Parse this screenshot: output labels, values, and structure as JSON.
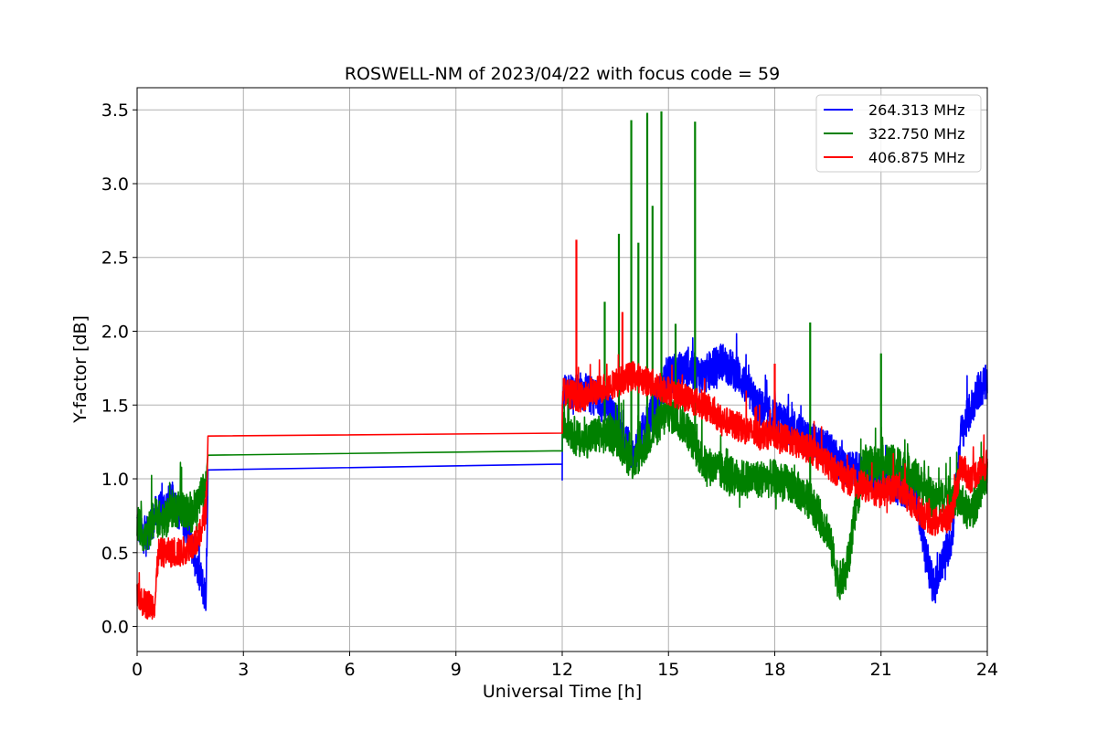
{
  "chart_data": {
    "type": "line",
    "title": "ROSWELL-NM of 2023/04/22 with focus code = 59",
    "xlabel": "Universal Time [h]",
    "ylabel": "Y-factor [dB]",
    "xlim": [
      0,
      24
    ],
    "ylim": [
      -0.17,
      3.65
    ],
    "xticks": [
      "0",
      "3",
      "6",
      "9",
      "12",
      "15",
      "18",
      "21",
      "24"
    ],
    "yticks": [
      "0.0",
      "0.5",
      "1.0",
      "1.5",
      "2.0",
      "2.5",
      "3.0",
      "3.5"
    ],
    "grid": true,
    "legend_position": "top-right",
    "series": [
      {
        "name": "264.313 MHz",
        "color": "#0000ff",
        "x": [
          0,
          0.25,
          0.5,
          0.75,
          1.0,
          1.25,
          1.5,
          1.75,
          1.95,
          2.0,
          12.0,
          12.0,
          12.5,
          13.0,
          13.5,
          14.0,
          14.5,
          15.0,
          15.5,
          16.0,
          16.5,
          17.0,
          17.5,
          18.0,
          18.5,
          19.0,
          19.5,
          20.0,
          20.5,
          21.0,
          21.5,
          22.0,
          22.25,
          22.5,
          22.75,
          23.0,
          23.25,
          23.5,
          23.75,
          24.0
        ],
        "y": [
          0.7,
          0.6,
          0.75,
          0.8,
          0.85,
          0.75,
          0.6,
          0.35,
          0.2,
          1.06,
          1.1,
          1.6,
          1.6,
          1.55,
          1.4,
          1.15,
          1.45,
          1.7,
          1.75,
          1.7,
          1.8,
          1.7,
          1.5,
          1.4,
          1.35,
          1.25,
          1.2,
          1.05,
          1.05,
          1.0,
          0.95,
          0.9,
          0.5,
          0.25,
          0.45,
          0.6,
          1.3,
          1.45,
          1.6,
          1.65
        ],
        "noise": 0.13
      },
      {
        "name": "322.750 MHz",
        "color": "#008000",
        "x": [
          0,
          0.25,
          0.5,
          0.75,
          1.0,
          1.25,
          1.5,
          1.75,
          1.95,
          2.0,
          12.0,
          12.0,
          12.5,
          13.0,
          13.5,
          14.0,
          14.5,
          15.0,
          15.5,
          16.0,
          16.5,
          17.0,
          17.5,
          18.0,
          18.5,
          19.0,
          19.5,
          19.8,
          20.0,
          20.5,
          21.0,
          21.5,
          22.0,
          22.5,
          23.0,
          23.25,
          23.5,
          24.0
        ],
        "y": [
          0.7,
          0.6,
          0.75,
          0.7,
          0.8,
          0.8,
          0.75,
          0.85,
          0.95,
          1.16,
          1.19,
          1.4,
          1.25,
          1.3,
          1.3,
          1.1,
          1.3,
          1.45,
          1.35,
          1.1,
          1.05,
          1.0,
          1.0,
          1.0,
          0.95,
          0.85,
          0.65,
          0.3,
          0.35,
          1.1,
          1.1,
          1.1,
          1.0,
          0.85,
          0.9,
          0.85,
          0.75,
          1.0
        ],
        "noise": 0.13,
        "spikes": [
          [
            13.2,
            2.2
          ],
          [
            13.6,
            2.66
          ],
          [
            13.95,
            3.43
          ],
          [
            14.15,
            2.6
          ],
          [
            14.4,
            3.48
          ],
          [
            14.55,
            2.85
          ],
          [
            14.8,
            3.49
          ],
          [
            15.2,
            2.05
          ],
          [
            15.75,
            3.42
          ],
          [
            19.0,
            2.06
          ],
          [
            21.0,
            1.85
          ]
        ]
      },
      {
        "name": "406.875 MHz",
        "color": "#ff0000",
        "x": [
          0,
          0.25,
          0.5,
          0.6,
          0.75,
          1.0,
          1.25,
          1.5,
          1.75,
          1.95,
          2.0,
          12.0,
          12.0,
          12.5,
          13.0,
          13.5,
          14.0,
          14.5,
          15.0,
          15.5,
          16.0,
          16.5,
          17.0,
          17.5,
          18.0,
          18.5,
          19.0,
          19.5,
          20.0,
          20.5,
          21.0,
          21.5,
          22.0,
          22.5,
          23.0,
          23.25,
          23.5,
          24.0
        ],
        "y": [
          0.2,
          0.15,
          0.15,
          0.5,
          0.5,
          0.5,
          0.5,
          0.55,
          0.6,
          0.8,
          1.29,
          1.31,
          1.6,
          1.55,
          1.6,
          1.65,
          1.7,
          1.65,
          1.6,
          1.55,
          1.5,
          1.4,
          1.35,
          1.3,
          1.3,
          1.25,
          1.2,
          1.1,
          1.0,
          0.95,
          0.9,
          0.95,
          0.8,
          0.7,
          0.75,
          1.1,
          1.0,
          1.1
        ],
        "noise": 0.1,
        "spikes": [
          [
            12.4,
            2.62
          ],
          [
            13.7,
            2.13
          ],
          [
            18.0,
            1.78
          ]
        ]
      }
    ]
  }
}
